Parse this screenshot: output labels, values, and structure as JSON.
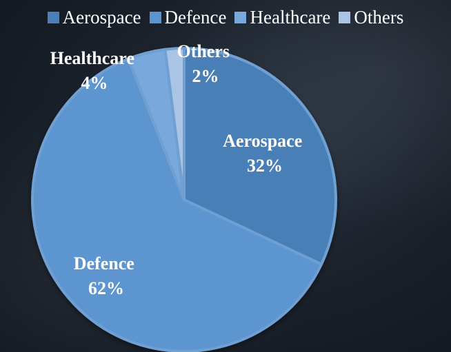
{
  "chart_data": {
    "type": "pie",
    "title": "",
    "legend_position": "top",
    "slices": [
      {
        "name": "Aerospace",
        "value": 32,
        "color": "#4a7fb7",
        "label_line1": "Aerospace",
        "label_line2": "32%"
      },
      {
        "name": "Defence",
        "value": 62,
        "color": "#5b95d0",
        "label_line1": "Defence",
        "label_line2": "62%"
      },
      {
        "name": "Healthcare",
        "value": 4,
        "color": "#78a8dc",
        "label_line1": "Healthcare",
        "label_line2": "4%"
      },
      {
        "name": "Others",
        "value": 2,
        "color": "#a9c4e4",
        "label_line1": "Others",
        "label_line2": "2%"
      }
    ]
  }
}
